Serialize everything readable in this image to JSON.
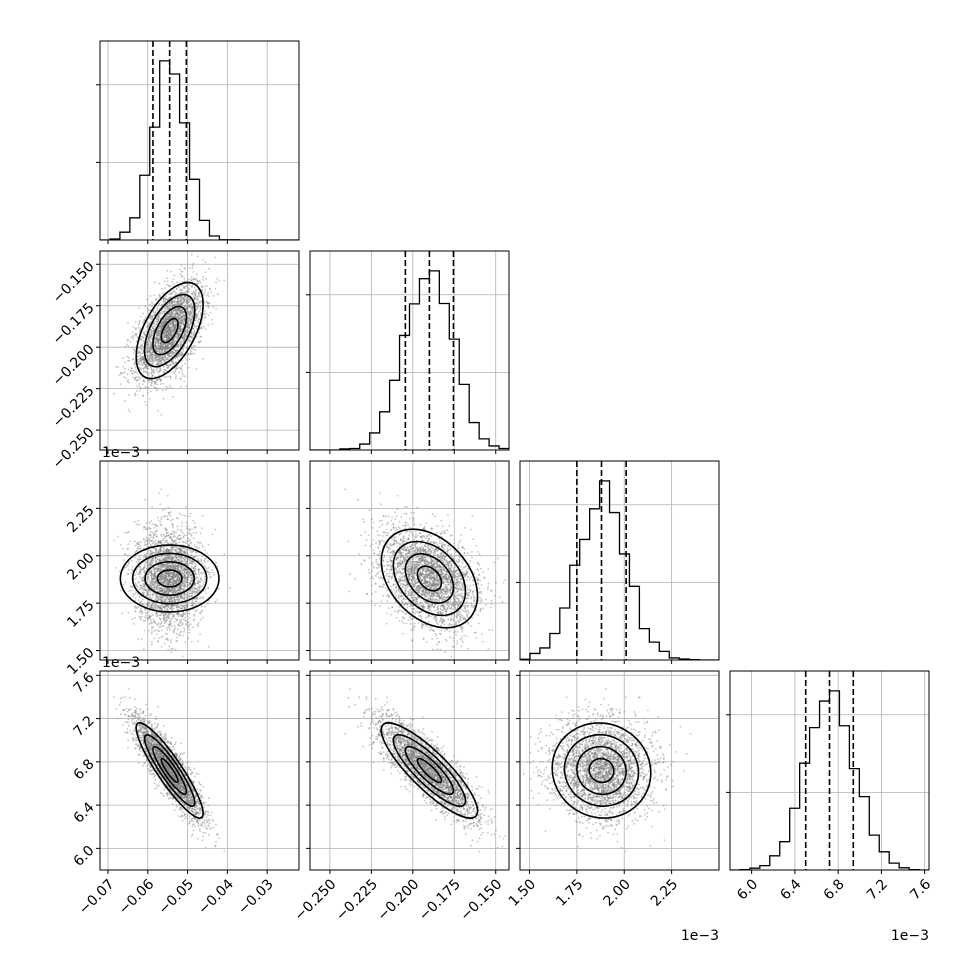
{
  "chart_data": {
    "type": "corner",
    "description_levels": "1D posterior histograms on the diagonal with dashed quantile lines; 2D density panels below the diagonal with scatter points, shaded 2D histogram and contour lines",
    "params": [
      {
        "index": 0,
        "range": [
          -0.072,
          -0.022
        ],
        "ticks": [
          -0.07,
          -0.06,
          -0.05,
          -0.04,
          -0.03
        ],
        "tick_labels": [
          "−0.07",
          "−0.06",
          "−0.05",
          "−0.04",
          "−0.03"
        ],
        "offset_label": "",
        "center": -0.0545,
        "spread": 0.0042,
        "quantiles": [
          -0.0587,
          -0.0545,
          -0.0503
        ]
      },
      {
        "index": 1,
        "range": [
          -0.262,
          -0.142
        ],
        "ticks": [
          -0.25,
          -0.225,
          -0.2,
          -0.175,
          -0.15
        ],
        "tick_labels": [
          "−0.250",
          "−0.225",
          "−0.200",
          "−0.175",
          "−0.150"
        ],
        "offset_label": "",
        "center": -0.19,
        "spread": 0.0145,
        "quantiles": [
          -0.2045,
          -0.19,
          -0.1755
        ]
      },
      {
        "index": 2,
        "range": [
          1.45,
          2.5
        ],
        "ticks": [
          1.5,
          1.75,
          2.0,
          2.25
        ],
        "tick_labels": [
          "1.50",
          "1.75",
          "2.00",
          "2.25"
        ],
        "offset_label": "1e−3",
        "center": 1.88,
        "spread": 0.13,
        "quantiles": [
          1.75,
          1.88,
          2.01
        ]
      },
      {
        "index": 3,
        "range": [
          5.8,
          7.64
        ],
        "ticks": [
          6.0,
          6.4,
          6.8,
          7.2,
          7.6
        ],
        "tick_labels": [
          "6.0",
          "6.4",
          "6.8",
          "7.2",
          "7.6"
        ],
        "offset_label": "1e−3",
        "center": 6.72,
        "spread": 0.22,
        "quantiles": [
          6.5,
          6.72,
          6.94
        ]
      }
    ],
    "correlations": {
      "1_0": 0.55,
      "2_0": 0.0,
      "2_1": -0.35,
      "3_0": -0.9,
      "3_1": -0.85,
      "3_2": -0.05
    },
    "n_samples": 3000,
    "grid": true,
    "colors": {
      "points": "#7f7f7f",
      "density_dark": "#000000",
      "contour": "#000000",
      "hist": "#000000",
      "grid": "#b0b0b0"
    }
  }
}
